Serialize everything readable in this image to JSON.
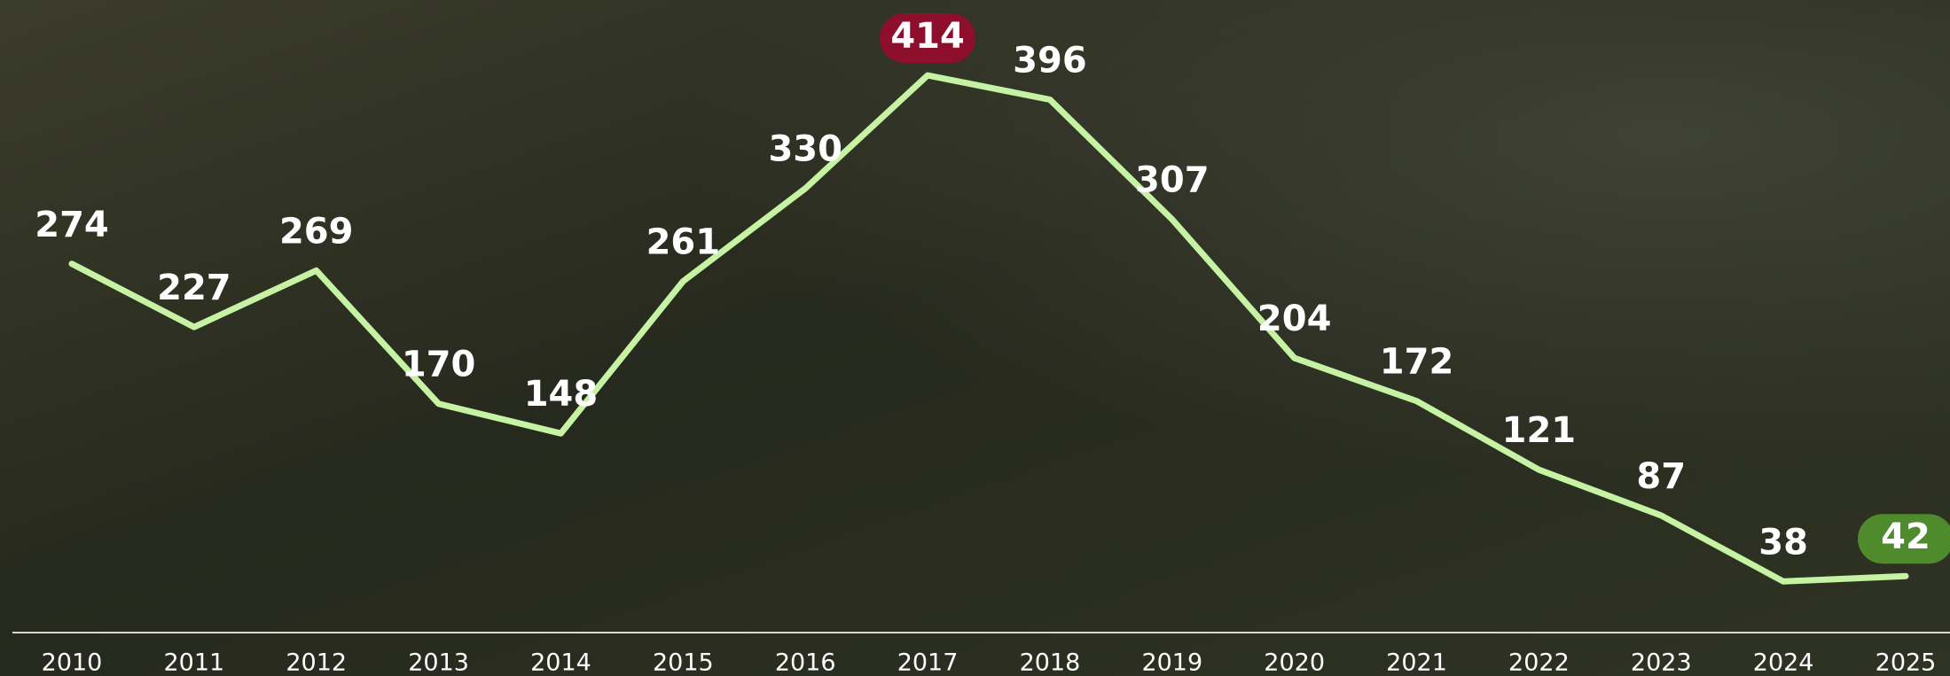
{
  "chart_data": {
    "type": "line",
    "categories": [
      "2010",
      "2011",
      "2012",
      "2013",
      "2014",
      "2015",
      "2016",
      "2017",
      "2018",
      "2019",
      "2020",
      "2021",
      "2022",
      "2023",
      "2024",
      "2025"
    ],
    "values": [
      274,
      227,
      269,
      170,
      148,
      261,
      330,
      414,
      396,
      307,
      204,
      172,
      121,
      87,
      38,
      42
    ],
    "color": "#c6f2a4",
    "label_backgrounds": [
      null,
      null,
      null,
      null,
      null,
      null,
      null,
      "#8e0f2b",
      null,
      null,
      null,
      null,
      null,
      null,
      null,
      "#4f8a2c"
    ],
    "ylim": [
      0,
      470
    ]
  }
}
